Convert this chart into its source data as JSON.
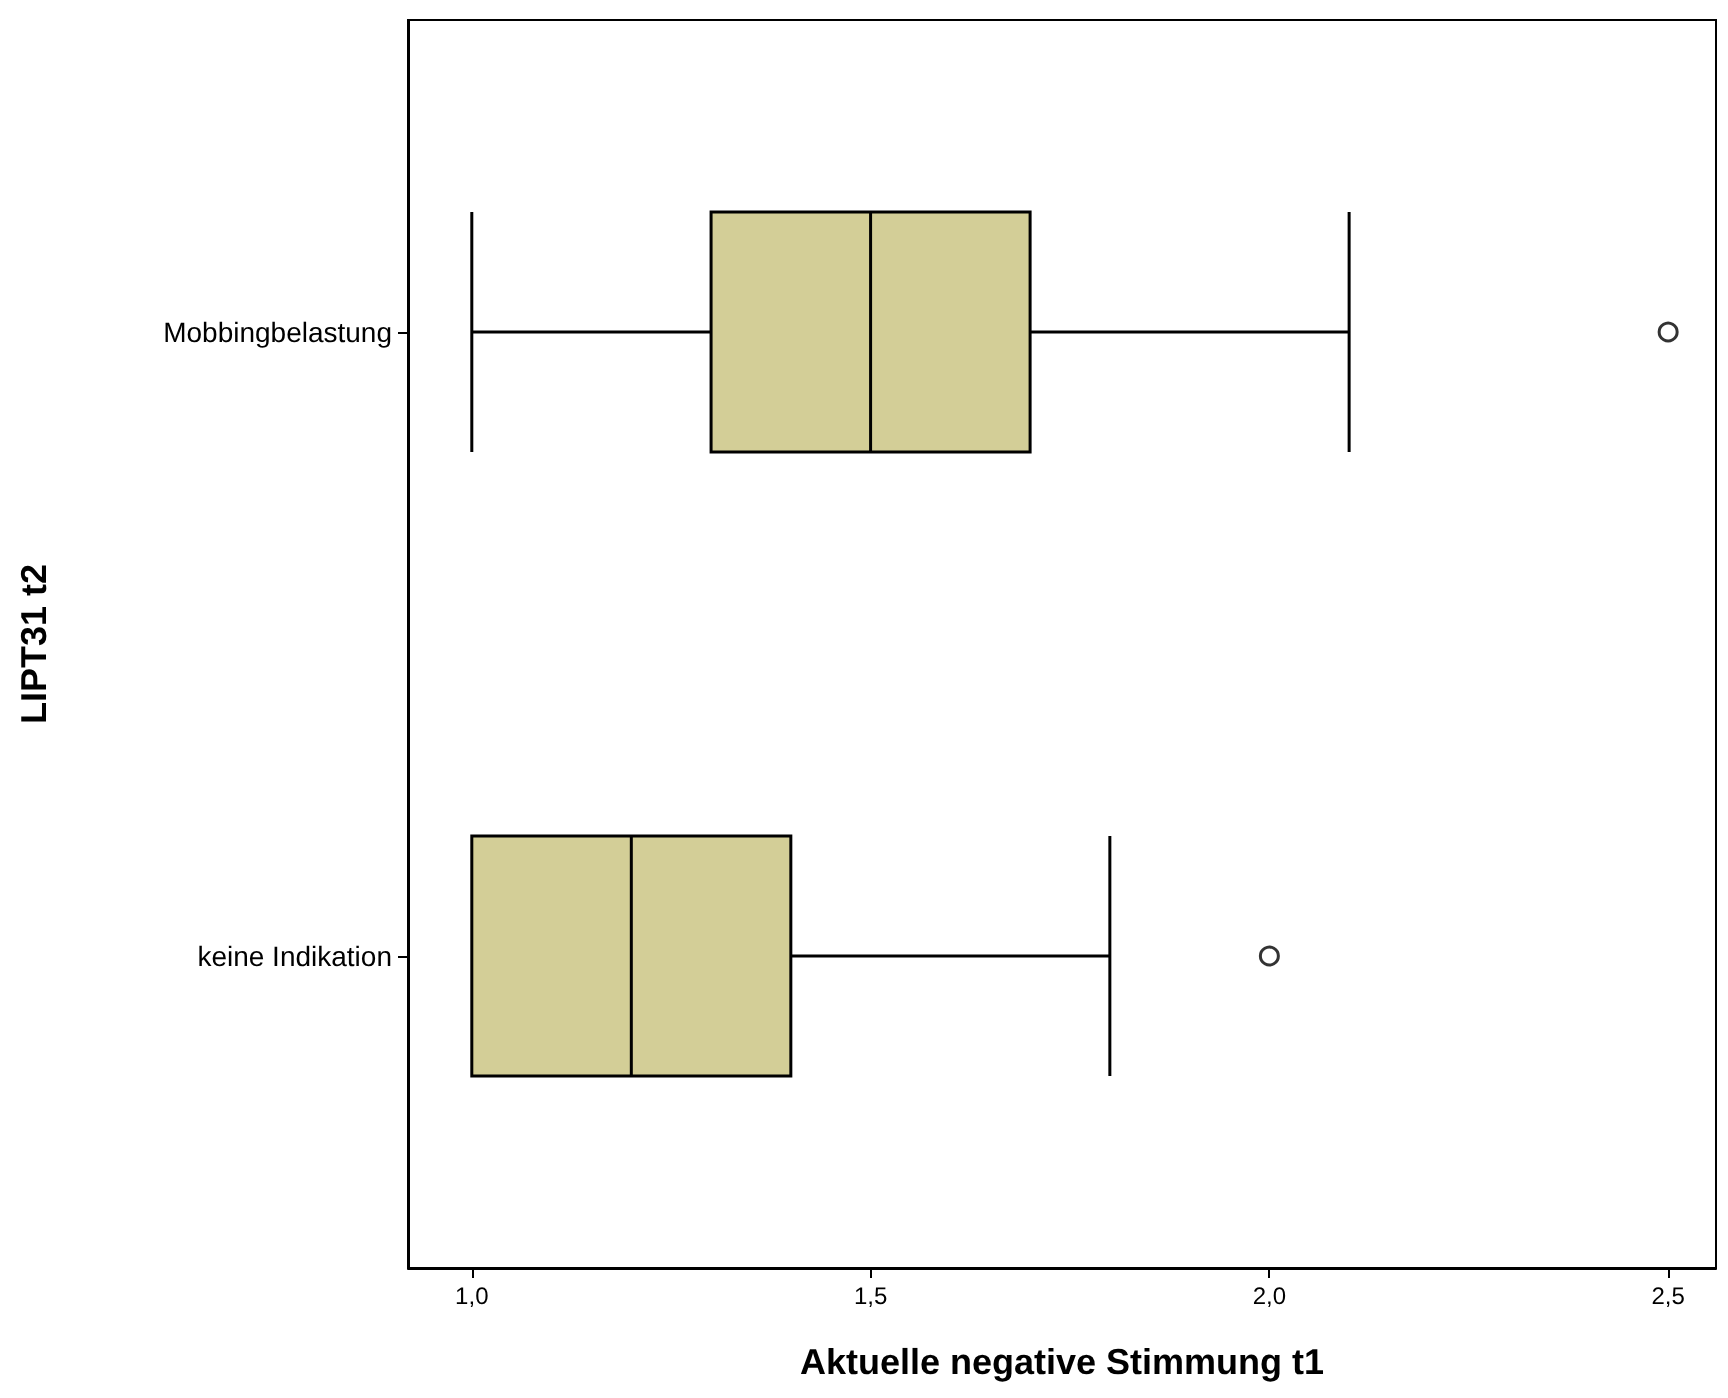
{
  "chart_data": {
    "type": "box",
    "orientation": "horizontal",
    "xlabel": "Aktuelle negative Stimmung t1",
    "ylabel": "LIPT31 t2",
    "categories": [
      "Mobbingbelastung",
      "keine Indikation"
    ],
    "boxes": [
      {
        "low": 1.0,
        "q1": 1.3,
        "median": 1.5,
        "q3": 1.7,
        "high": 2.1,
        "outliers": [
          2.5
        ]
      },
      {
        "low": 1.0,
        "q1": 1.0,
        "median": 1.2,
        "q3": 1.4,
        "high": 1.8,
        "outliers": [
          2.0
        ]
      }
    ],
    "color": "#d3ce97",
    "xlim": [
      0.92,
      2.56
    ],
    "xticks": [
      {
        "value": 1.0,
        "label": "1,0"
      },
      {
        "value": 1.5,
        "label": "1,5"
      },
      {
        "value": 2.0,
        "label": "2,0"
      },
      {
        "value": 2.5,
        "label": "2,5"
      }
    ]
  }
}
